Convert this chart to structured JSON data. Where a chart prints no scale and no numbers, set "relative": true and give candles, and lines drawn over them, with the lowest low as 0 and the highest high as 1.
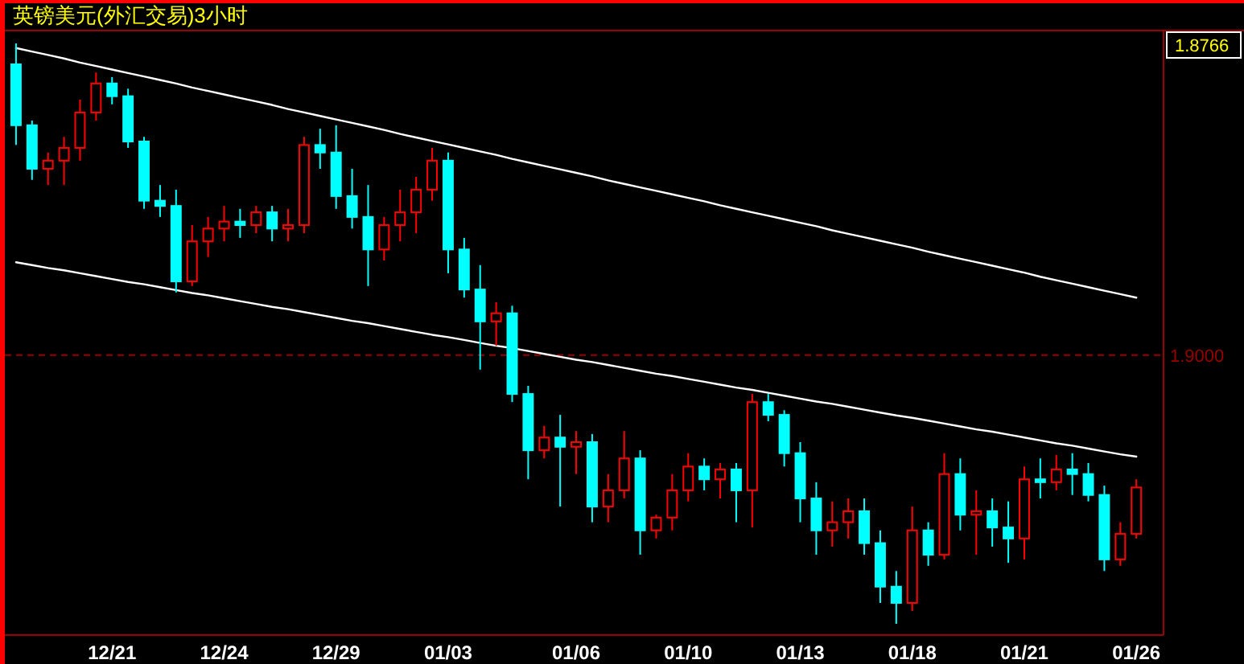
{
  "chart_data": {
    "type": "candlestick",
    "title": "英镑美元(外汇交易)3小时",
    "relative": true,
    "categories": [
      null,
      null,
      null,
      null,
      null,
      null,
      "12/21",
      null,
      null,
      null,
      null,
      null,
      null,
      "12/24",
      null,
      null,
      null,
      null,
      null,
      null,
      "12/29",
      null,
      null,
      null,
      null,
      null,
      null,
      "01/03",
      null,
      null,
      null,
      null,
      null,
      null,
      null,
      "01/06",
      null,
      null,
      null,
      null,
      null,
      null,
      "01/10",
      null,
      null,
      null,
      null,
      null,
      null,
      "01/13",
      null,
      null,
      null,
      null,
      null,
      null,
      "01/18",
      null,
      null,
      null,
      null,
      null,
      null,
      "01/21",
      null,
      null,
      null,
      null,
      null,
      null,
      "01/26"
    ],
    "ohlc": [
      [
        0.964,
        1.0,
        0.825,
        0.859
      ],
      [
        0.859,
        0.867,
        0.765,
        0.784
      ],
      [
        0.784,
        0.812,
        0.756,
        0.798
      ],
      [
        0.798,
        0.839,
        0.756,
        0.82
      ],
      [
        0.82,
        0.903,
        0.798,
        0.881
      ],
      [
        0.881,
        0.95,
        0.867,
        0.931
      ],
      [
        0.931,
        0.942,
        0.895,
        0.909
      ],
      [
        0.909,
        0.922,
        0.82,
        0.831
      ],
      [
        0.831,
        0.839,
        0.715,
        0.729
      ],
      [
        0.729,
        0.756,
        0.701,
        0.72
      ],
      [
        0.72,
        0.748,
        0.571,
        0.59
      ],
      [
        0.59,
        0.687,
        0.582,
        0.659
      ],
      [
        0.659,
        0.701,
        0.632,
        0.681
      ],
      [
        0.681,
        0.72,
        0.659,
        0.693
      ],
      [
        0.693,
        0.715,
        0.665,
        0.687
      ],
      [
        0.687,
        0.72,
        0.673,
        0.709
      ],
      [
        0.709,
        0.72,
        0.659,
        0.681
      ],
      [
        0.681,
        0.715,
        0.659,
        0.687
      ],
      [
        0.687,
        0.839,
        0.673,
        0.825
      ],
      [
        0.825,
        0.853,
        0.784,
        0.812
      ],
      [
        0.812,
        0.859,
        0.715,
        0.737
      ],
      [
        0.737,
        0.784,
        0.681,
        0.701
      ],
      [
        0.701,
        0.756,
        0.582,
        0.645
      ],
      [
        0.645,
        0.701,
        0.626,
        0.687
      ],
      [
        0.687,
        0.748,
        0.659,
        0.709
      ],
      [
        0.709,
        0.77,
        0.673,
        0.748
      ],
      [
        0.748,
        0.82,
        0.729,
        0.798
      ],
      [
        0.798,
        0.812,
        0.604,
        0.645
      ],
      [
        0.645,
        0.665,
        0.562,
        0.576
      ],
      [
        0.576,
        0.618,
        0.438,
        0.521
      ],
      [
        0.521,
        0.554,
        0.479,
        0.535
      ],
      [
        0.535,
        0.548,
        0.382,
        0.396
      ],
      [
        0.396,
        0.41,
        0.249,
        0.299
      ],
      [
        0.299,
        0.341,
        0.285,
        0.321
      ],
      [
        0.321,
        0.36,
        0.202,
        0.305
      ],
      [
        0.305,
        0.332,
        0.258,
        0.313
      ],
      [
        0.313,
        0.327,
        0.175,
        0.202
      ],
      [
        0.202,
        0.258,
        0.175,
        0.23
      ],
      [
        0.23,
        0.332,
        0.216,
        0.285
      ],
      [
        0.285,
        0.299,
        0.119,
        0.161
      ],
      [
        0.161,
        0.188,
        0.147,
        0.183
      ],
      [
        0.183,
        0.258,
        0.161,
        0.23
      ],
      [
        0.23,
        0.294,
        0.211,
        0.271
      ],
      [
        0.271,
        0.285,
        0.23,
        0.249
      ],
      [
        0.249,
        0.277,
        0.216,
        0.266
      ],
      [
        0.266,
        0.277,
        0.175,
        0.23
      ],
      [
        0.23,
        0.396,
        0.166,
        0.382
      ],
      [
        0.382,
        0.396,
        0.349,
        0.36
      ],
      [
        0.36,
        0.368,
        0.271,
        0.294
      ],
      [
        0.294,
        0.313,
        0.175,
        0.216
      ],
      [
        0.216,
        0.244,
        0.119,
        0.161
      ],
      [
        0.161,
        0.211,
        0.133,
        0.175
      ],
      [
        0.175,
        0.216,
        0.147,
        0.194
      ],
      [
        0.194,
        0.216,
        0.119,
        0.139
      ],
      [
        0.139,
        0.161,
        0.036,
        0.064
      ],
      [
        0.064,
        0.091,
        0.0,
        0.036
      ],
      [
        0.036,
        0.202,
        0.022,
        0.161
      ],
      [
        0.161,
        0.175,
        0.1,
        0.119
      ],
      [
        0.119,
        0.294,
        0.111,
        0.258
      ],
      [
        0.258,
        0.285,
        0.161,
        0.188
      ],
      [
        0.188,
        0.23,
        0.119,
        0.194
      ],
      [
        0.194,
        0.216,
        0.133,
        0.166
      ],
      [
        0.166,
        0.211,
        0.105,
        0.147
      ],
      [
        0.147,
        0.271,
        0.111,
        0.249
      ],
      [
        0.249,
        0.285,
        0.216,
        0.244
      ],
      [
        0.244,
        0.291,
        0.23,
        0.266
      ],
      [
        0.266,
        0.294,
        0.222,
        0.258
      ],
      [
        0.258,
        0.277,
        0.211,
        0.222
      ],
      [
        0.222,
        0.238,
        0.091,
        0.111
      ],
      [
        0.111,
        0.175,
        0.1,
        0.155
      ],
      [
        0.155,
        0.249,
        0.147,
        0.235
      ]
    ],
    "colors": [
      "#00ffff",
      "#00ffff",
      "#ff0000",
      "#ff0000",
      "#ff0000",
      "#ff0000",
      "#00ffff",
      "#00ffff",
      "#00ffff",
      "#00ffff",
      "#00ffff",
      "#ff0000",
      "#ff0000",
      "#ff0000",
      "#00ffff",
      "#ff0000",
      "#00ffff",
      "#ff0000",
      "#ff0000",
      "#00ffff",
      "#00ffff",
      "#00ffff",
      "#00ffff",
      "#ff0000",
      "#ff0000",
      "#ff0000",
      "#ff0000",
      "#00ffff",
      "#00ffff",
      "#00ffff",
      "#ff0000",
      "#00ffff",
      "#00ffff",
      "#ff0000",
      "#00ffff",
      "#ff0000",
      "#00ffff",
      "#ff0000",
      "#ff0000",
      "#00ffff",
      "#ff0000",
      "#ff0000",
      "#ff0000",
      "#00ffff",
      "#ff0000",
      "#00ffff",
      "#ff0000",
      "#00ffff",
      "#00ffff",
      "#00ffff",
      "#00ffff",
      "#ff0000",
      "#ff0000",
      "#00ffff",
      "#00ffff",
      "#00ffff",
      "#ff0000",
      "#00ffff",
      "#ff0000",
      "#00ffff",
      "#ff0000",
      "#00ffff",
      "#00ffff",
      "#ff0000",
      "#00ffff",
      "#ff0000",
      "#00ffff",
      "#00ffff",
      "#00ffff",
      "#ff0000",
      "#ff0000"
    ],
    "series": [
      {
        "type": "line",
        "color": "#ffffff",
        "values": [
          0.992,
          0.986,
          0.98,
          0.974,
          0.967,
          0.961,
          0.955,
          0.949,
          0.943,
          0.937,
          0.931,
          0.924,
          0.918,
          0.912,
          0.906,
          0.9,
          0.894,
          0.887,
          0.881,
          0.875,
          0.869,
          0.863,
          0.857,
          0.851,
          0.844,
          0.838,
          0.832,
          0.826,
          0.82,
          0.814,
          0.808,
          0.801,
          0.795,
          0.789,
          0.783,
          0.777,
          0.771,
          0.764,
          0.758,
          0.752,
          0.746,
          0.74,
          0.734,
          0.728,
          0.721,
          0.715,
          0.709,
          0.703,
          0.697,
          0.691,
          0.685,
          0.678,
          0.672,
          0.666,
          0.66,
          0.654,
          0.648,
          0.641,
          0.635,
          0.629,
          0.623,
          0.617,
          0.611,
          0.605,
          0.598,
          0.592,
          0.586,
          0.58,
          0.574,
          0.568,
          0.562
        ]
      },
      {
        "type": "line",
        "color": "#ffffff",
        "values": [
          0.623,
          0.618,
          0.613,
          0.609,
          0.604,
          0.599,
          0.594,
          0.589,
          0.585,
          0.58,
          0.575,
          0.57,
          0.566,
          0.561,
          0.556,
          0.551,
          0.546,
          0.542,
          0.537,
          0.532,
          0.527,
          0.522,
          0.518,
          0.513,
          0.508,
          0.503,
          0.498,
          0.494,
          0.489,
          0.484,
          0.479,
          0.475,
          0.47,
          0.465,
          0.46,
          0.455,
          0.451,
          0.446,
          0.441,
          0.436,
          0.431,
          0.427,
          0.422,
          0.417,
          0.412,
          0.407,
          0.403,
          0.398,
          0.393,
          0.388,
          0.383,
          0.379,
          0.374,
          0.369,
          0.364,
          0.359,
          0.355,
          0.35,
          0.345,
          0.34,
          0.335,
          0.331,
          0.326,
          0.321,
          0.316,
          0.311,
          0.307,
          0.302,
          0.297,
          0.292,
          0.288
        ]
      }
    ],
    "ref_lines": [
      {
        "axis": "y",
        "value": 0.463,
        "color": "#990000",
        "line_style": "dashed"
      }
    ],
    "annotations": [
      "1.8766",
      "1.9000"
    ]
  }
}
